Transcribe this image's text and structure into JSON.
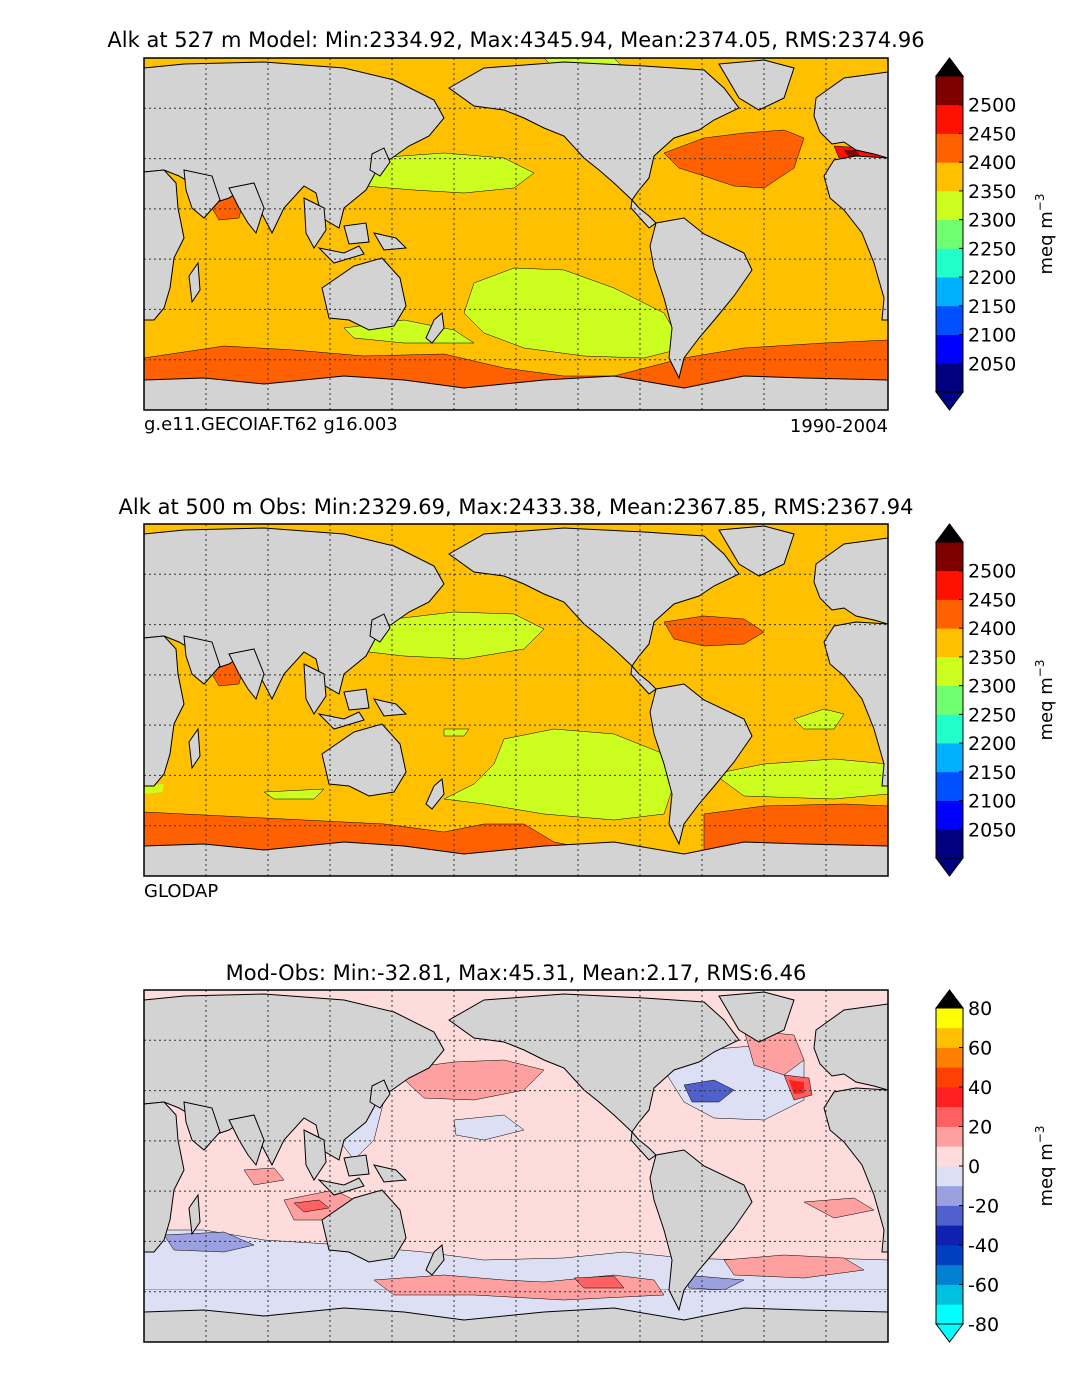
{
  "chart_data": [
    {
      "type": "heatmap",
      "title": "Alk at 527 m Model: Min:2334.92, Max:4345.94, Mean:2374.05, RMS:2374.96",
      "caption_left": "g.e11.GECOIAF.T62 g16.003",
      "caption_right": "1990-2004",
      "colorbar": {
        "label": "meq m",
        "label_exp": "−3",
        "ticks": [
          "2050",
          "2100",
          "2150",
          "2200",
          "2250",
          "2300",
          "2350",
          "2400",
          "2450",
          "2500"
        ],
        "colors": [
          "#000080",
          "#0000ff",
          "#0050ff",
          "#00b0ff",
          "#20ffcc",
          "#70ff70",
          "#ccff20",
          "#ffc000",
          "#ff6000",
          "#ff1000",
          "#800000"
        ],
        "under": "#000080",
        "over": "#000000"
      },
      "field": "model"
    },
    {
      "type": "heatmap",
      "title": "Alk at 500 m Obs: Min:2329.69, Max:2433.38, Mean:2367.85, RMS:2367.94",
      "caption_left": "GLODAP",
      "caption_right": "",
      "colorbar": {
        "label": "meq m",
        "label_exp": "−3",
        "ticks": [
          "2050",
          "2100",
          "2150",
          "2200",
          "2250",
          "2300",
          "2350",
          "2400",
          "2450",
          "2500"
        ],
        "colors": [
          "#000080",
          "#0000ff",
          "#0050ff",
          "#00b0ff",
          "#20ffcc",
          "#70ff70",
          "#ccff20",
          "#ffc000",
          "#ff6000",
          "#ff1000",
          "#800000"
        ],
        "under": "#000080",
        "over": "#000000"
      },
      "field": "obs"
    },
    {
      "type": "heatmap",
      "title": "Mod-Obs: Min:-32.81, Max:45.31, Mean:2.17, RMS:6.46",
      "caption_left": "",
      "caption_right": "",
      "colorbar": {
        "label": "meq m",
        "label_exp": "−3",
        "ticks": [
          "-80",
          "-60",
          "-40",
          "-20",
          "0",
          "20",
          "40",
          "60",
          "80"
        ],
        "colors": [
          "#00ffff",
          "#00c0e0",
          "#0080d0",
          "#0040c0",
          "#1020b0",
          "#5060cc",
          "#9aa0e0",
          "#dde0f5",
          "#ffdcdc",
          "#ffa0a0",
          "#ff6060",
          "#ff2020",
          "#ff4000",
          "#ff8000",
          "#ffc000",
          "#ffff00"
        ],
        "under": "#00ffff",
        "over": "#000000",
        "tick_at_bounds": true
      },
      "field": "diff"
    }
  ],
  "map": {
    "land_color": "#d3d3d3",
    "gridlines": "dotted"
  }
}
